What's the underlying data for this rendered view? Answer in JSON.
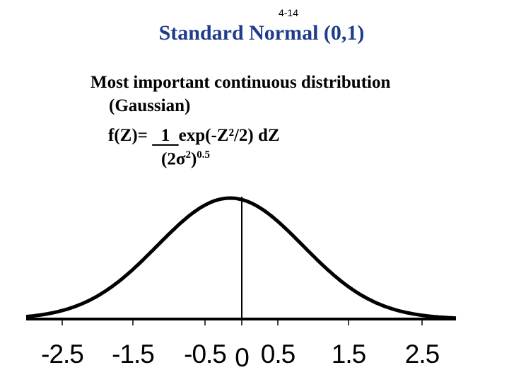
{
  "slide": {
    "page_number": "4-14",
    "title": "Standard Normal (0,1)",
    "bullet_line1": "Most important continuous distribution",
    "bullet_line2": "(Gaussian)",
    "formula": {
      "lhs": "f(Z)= ",
      "numerator": "  1  ",
      "rhs": "exp(-Z²/2) dZ",
      "denominator_open": "(2",
      "sigma": "σ",
      "sigma_exp": "2",
      "denominator_close": ")",
      "power": "0.5"
    },
    "title_color": "#1f3b8c"
  },
  "chart_data": {
    "type": "line",
    "title": "",
    "xlabel": "",
    "ylabel": "",
    "xlim": [
      -2.8,
      3.1
    ],
    "x_ticks": [
      "-2.5",
      "-1.5",
      "-0.5",
      "0",
      "0.5",
      "1.5",
      "2.5"
    ],
    "series": [
      {
        "x": [
          -2.8,
          -2.5,
          -2.0,
          -1.5,
          -1.0,
          -0.5,
          0,
          0.5,
          1.0,
          1.5,
          2.0,
          2.5,
          3.0,
          3.1
        ],
        "values": [
          0.008,
          0.018,
          0.054,
          0.13,
          0.242,
          0.352,
          0.399,
          0.352,
          0.242,
          0.13,
          0.054,
          0.018,
          0.004,
          0.003
        ]
      }
    ]
  }
}
